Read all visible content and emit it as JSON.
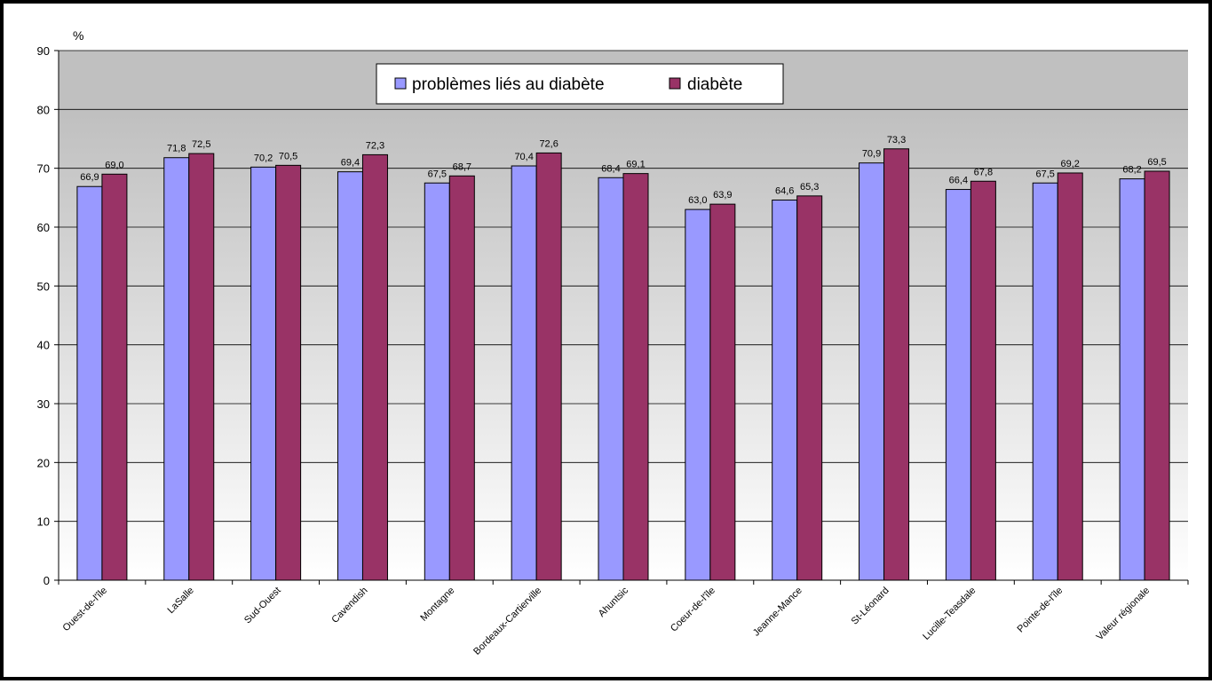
{
  "chart_data": {
    "type": "bar",
    "title": "",
    "xlabel": "",
    "ylabel": "%",
    "ylim": [
      0,
      90
    ],
    "yticks": [
      0,
      10,
      20,
      30,
      40,
      50,
      60,
      70,
      80,
      90
    ],
    "grid": true,
    "legend_position": "top-center",
    "categories": [
      "Ouest-de-l'île",
      "LaSalle",
      "Sud-Ouest",
      "Cavendish",
      "Montagne",
      "Bordeaux-Cartierville",
      "Ahuntsic",
      "Coeur-de-l'île",
      "Jeanne-Mance",
      "St-Léonard",
      "Lucille-Teasdale",
      "Pointe-de-l'île",
      "Valeur régionale"
    ],
    "series": [
      {
        "name": "problèmes liés au diabète",
        "color": "#9999ff",
        "values": [
          66.9,
          71.8,
          70.2,
          69.4,
          67.5,
          70.4,
          68.4,
          63.0,
          64.6,
          70.9,
          66.4,
          67.5,
          68.2
        ],
        "labels": [
          "66,9",
          "71,8",
          "70,2",
          "69,4",
          "67,5",
          "70,4",
          "68,4",
          "63,0",
          "64,6",
          "70,9",
          "66,4",
          "67,5",
          "68,2"
        ]
      },
      {
        "name": "diabète",
        "color": "#993366",
        "values": [
          69.0,
          72.5,
          70.5,
          72.3,
          68.7,
          72.6,
          69.1,
          63.9,
          65.3,
          73.3,
          67.8,
          69.2,
          69.5
        ],
        "labels": [
          "69,0",
          "72,5",
          "70,5",
          "72,3",
          "68,7",
          "72,6",
          "69,1",
          "63,9",
          "65,3",
          "73,3",
          "67,8",
          "69,2",
          "69,5"
        ]
      }
    ]
  }
}
